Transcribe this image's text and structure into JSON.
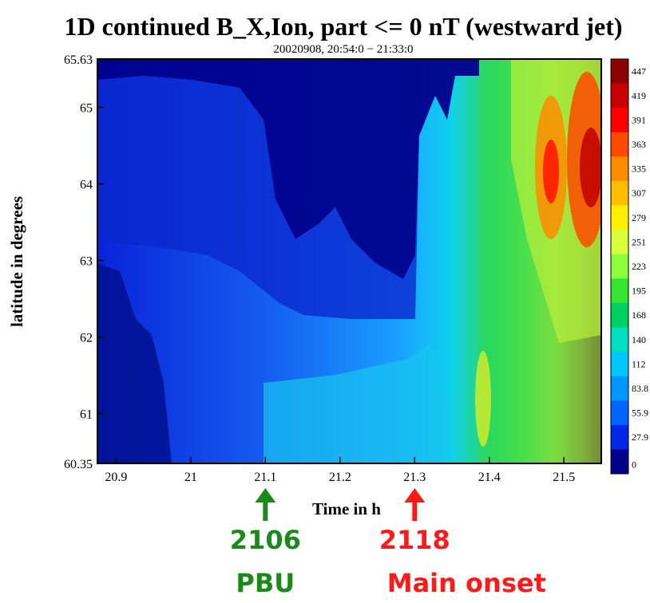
{
  "colors": {
    "green_marker": "#1b8a1b",
    "red_marker": "#ff1a1a",
    "plot_border": "#000000"
  },
  "chart_data": {
    "type": "heatmap",
    "title": "1D continued B_X,Ion, part <= 0 nT (westward jet)",
    "subtitle": "20020908, 20:54:0 − 21:33:0",
    "xlabel": "Time in h",
    "ylabel": "latitude in degrees",
    "xlim": [
      20.875,
      21.55
    ],
    "ylim": [
      60.35,
      65.63
    ],
    "x_ticks": [
      "20.9",
      "21",
      "21.1",
      "21.2",
      "21.3",
      "21.4",
      "21.5"
    ],
    "x_tick_values": [
      20.9,
      21.0,
      21.1,
      21.2,
      21.3,
      21.4,
      21.5
    ],
    "y_ticks": [
      "65.63",
      "65",
      "64",
      "63",
      "62",
      "61",
      "60.35"
    ],
    "y_tick_values": [
      65.63,
      65,
      64,
      63,
      62,
      61,
      60.35
    ],
    "colorbar": {
      "labels": [
        "447",
        "419",
        "391",
        "363",
        "335",
        "307",
        "279",
        "251",
        "223",
        "195",
        "168",
        "140",
        "112",
        "83.8",
        "55.9",
        "27.9",
        "0"
      ],
      "colors": [
        "#8b0000",
        "#c80000",
        "#ff0000",
        "#ff4a00",
        "#ff8c00",
        "#ffbf00",
        "#ffef00",
        "#d8ff3c",
        "#8cff3c",
        "#32e632",
        "#00d060",
        "#00e0c0",
        "#00c8ff",
        "#0096ff",
        "#0064ff",
        "#0028e6",
        "#00008b"
      ]
    },
    "grid": false,
    "legend": "colorbar-right"
  },
  "annotations": [
    {
      "id": "pbu",
      "time_label": "2106",
      "event_label": "PBU",
      "x_value": 21.1,
      "color": "#1b8a1b"
    },
    {
      "id": "main-onset",
      "time_label": "2118",
      "event_label": "Main onset",
      "x_value": 21.3,
      "color": "#ff1a1a"
    }
  ]
}
